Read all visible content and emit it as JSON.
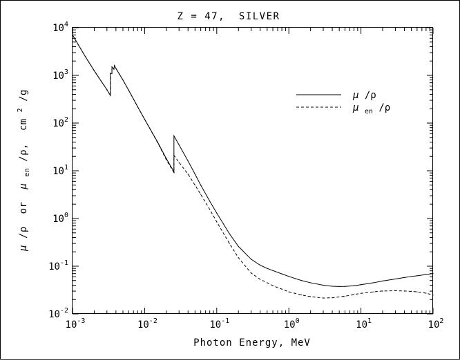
{
  "chart_data": {
    "type": "line",
    "title": "Z = 47,  SILVER",
    "xlabel": "Photon Energy, MeV",
    "ylabel_parts": {
      "mu": "μ",
      "slash_rho": "/ρ",
      "or": " or ",
      "mu2": "μ",
      "en": "en",
      "slash_rho2": "/ρ,",
      "unit_cm": " cm",
      "unit_exp": "2",
      "unit_g": "/g"
    },
    "xscale": "log",
    "yscale": "log",
    "xlim": [
      0.001,
      100
    ],
    "ylim": [
      0.01,
      10000
    ],
    "grid": false,
    "legend_position": "top-right",
    "x_ticks": [
      {
        "base": "10",
        "exp": "-3",
        "value": 0.001
      },
      {
        "base": "10",
        "exp": "-2",
        "value": 0.01
      },
      {
        "base": "10",
        "exp": "-1",
        "value": 0.1
      },
      {
        "base": "10",
        "exp": "0",
        "value": 1
      },
      {
        "base": "10",
        "exp": "1",
        "value": 10
      },
      {
        "base": "10",
        "exp": "2",
        "value": 100
      }
    ],
    "y_ticks": [
      {
        "base": "10",
        "exp": "-2",
        "value": 0.01
      },
      {
        "base": "10",
        "exp": "-1",
        "value": 0.1
      },
      {
        "base": "10",
        "exp": "0",
        "value": 1
      },
      {
        "base": "10",
        "exp": "1",
        "value": 10
      },
      {
        "base": "10",
        "exp": "2",
        "value": 100
      },
      {
        "base": "10",
        "exp": "3",
        "value": 1000
      },
      {
        "base": "10",
        "exp": "4",
        "value": 10000
      }
    ],
    "series": [
      {
        "name_parts": {
          "sym": "μ",
          "sub": "",
          "rest": "/ρ"
        },
        "style": "solid",
        "color": "#000000",
        "points": [
          [
            0.001,
            7000
          ],
          [
            0.0015,
            2500
          ],
          [
            0.002,
            1250
          ],
          [
            0.003,
            500
          ],
          [
            0.00335,
            380
          ],
          [
            0.00335,
            1100
          ],
          [
            0.00352,
            1100
          ],
          [
            0.00352,
            1500
          ],
          [
            0.00375,
            1350
          ],
          [
            0.00381,
            1600
          ],
          [
            0.004,
            1400
          ],
          [
            0.005,
            800
          ],
          [
            0.006,
            490
          ],
          [
            0.008,
            220
          ],
          [
            0.01,
            120
          ],
          [
            0.015,
            41
          ],
          [
            0.02,
            18
          ],
          [
            0.0255,
            9.5
          ],
          [
            0.0255,
            54
          ],
          [
            0.03,
            35
          ],
          [
            0.04,
            16
          ],
          [
            0.05,
            8.5
          ],
          [
            0.06,
            5.0
          ],
          [
            0.08,
            2.3
          ],
          [
            0.1,
            1.3
          ],
          [
            0.15,
            0.48
          ],
          [
            0.2,
            0.26
          ],
          [
            0.3,
            0.14
          ],
          [
            0.4,
            0.105
          ],
          [
            0.5,
            0.09
          ],
          [
            0.6,
            0.081
          ],
          [
            0.8,
            0.069
          ],
          [
            1,
            0.061
          ],
          [
            1.5,
            0.05
          ],
          [
            2,
            0.045
          ],
          [
            3,
            0.04
          ],
          [
            4,
            0.038
          ],
          [
            5,
            0.0375
          ],
          [
            6,
            0.0377
          ],
          [
            8,
            0.039
          ],
          [
            10,
            0.041
          ],
          [
            15,
            0.045
          ],
          [
            20,
            0.049
          ],
          [
            30,
            0.054
          ],
          [
            40,
            0.058
          ],
          [
            50,
            0.061
          ],
          [
            60,
            0.063
          ],
          [
            80,
            0.067
          ],
          [
            100,
            0.07
          ]
        ]
      },
      {
        "name_parts": {
          "sym": "μ",
          "sub": "en",
          "rest": "/ρ"
        },
        "style": "dashed",
        "color": "#000000",
        "points": [
          [
            0.001,
            7000
          ],
          [
            0.0015,
            2500
          ],
          [
            0.002,
            1250
          ],
          [
            0.003,
            500
          ],
          [
            0.00335,
            380
          ],
          [
            0.00335,
            1100
          ],
          [
            0.00352,
            1100
          ],
          [
            0.00352,
            1500
          ],
          [
            0.00375,
            1350
          ],
          [
            0.00381,
            1600
          ],
          [
            0.004,
            1400
          ],
          [
            0.005,
            800
          ],
          [
            0.006,
            490
          ],
          [
            0.008,
            220
          ],
          [
            0.01,
            120
          ],
          [
            0.015,
            40
          ],
          [
            0.02,
            17
          ],
          [
            0.0255,
            9.2
          ],
          [
            0.0255,
            21
          ],
          [
            0.03,
            15
          ],
          [
            0.04,
            8.5
          ],
          [
            0.05,
            5.0
          ],
          [
            0.06,
            3.2
          ],
          [
            0.08,
            1.55
          ],
          [
            0.1,
            0.85
          ],
          [
            0.15,
            0.3
          ],
          [
            0.2,
            0.15
          ],
          [
            0.3,
            0.072
          ],
          [
            0.4,
            0.053
          ],
          [
            0.5,
            0.045
          ],
          [
            0.6,
            0.039
          ],
          [
            0.8,
            0.033
          ],
          [
            1,
            0.029
          ],
          [
            1.5,
            0.025
          ],
          [
            2,
            0.023
          ],
          [
            3,
            0.0215
          ],
          [
            4,
            0.0218
          ],
          [
            6,
            0.0235
          ],
          [
            8,
            0.0255
          ],
          [
            10,
            0.027
          ],
          [
            15,
            0.029
          ],
          [
            20,
            0.0302
          ],
          [
            30,
            0.0306
          ],
          [
            40,
            0.0302
          ],
          [
            50,
            0.0297
          ],
          [
            60,
            0.029
          ],
          [
            80,
            0.0272
          ],
          [
            100,
            0.0248
          ]
        ]
      }
    ]
  }
}
